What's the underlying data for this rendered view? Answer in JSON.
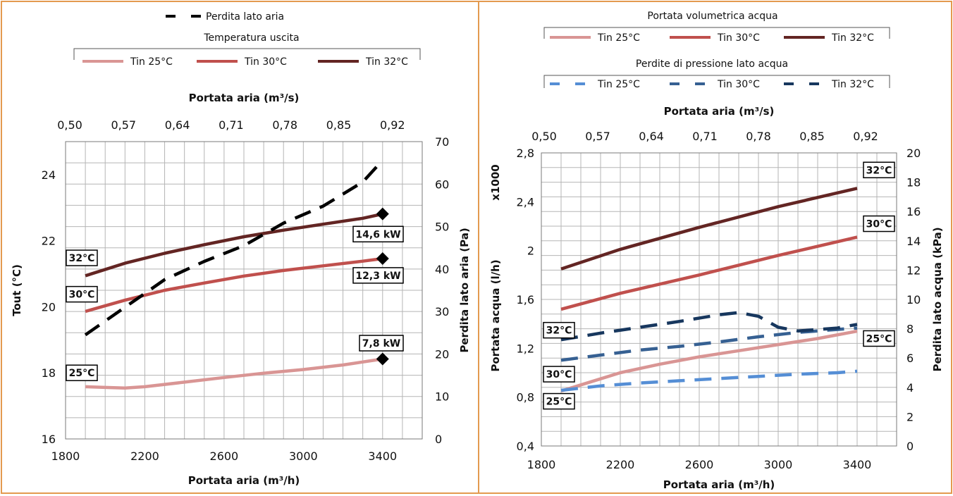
{
  "chart_data": [
    {
      "type": "line",
      "legend": {
        "air_loss_item": "Perdita lato aria",
        "outlet_group_title": "Temperatura uscita",
        "outlet_items": [
          "Tin 25°C",
          "Tin 30°C",
          "Tin 32°C"
        ]
      },
      "x_bottom": {
        "label": "Portata aria (m³/h)",
        "range": [
          1800,
          3600
        ],
        "ticks": [
          "1800",
          "2200",
          "2600",
          "3000",
          "3400"
        ]
      },
      "x_top": {
        "label": "Portata aria (m³/s)",
        "ticks": [
          "0,50",
          "0,57",
          "0,64",
          "0,71",
          "0,78",
          "0,85",
          "0,92"
        ]
      },
      "y_left": {
        "label": "Tout (°C)",
        "range": [
          16,
          25
        ],
        "ticks": [
          "16",
          "18",
          "20",
          "22",
          "24"
        ]
      },
      "y_right": {
        "label": "Perdita lato aria (Pa)",
        "range": [
          0,
          70
        ],
        "ticks": [
          "0",
          "10",
          "20",
          "30",
          "40",
          "50",
          "60",
          "70"
        ]
      },
      "series": [
        {
          "name": "Tin 25°C",
          "axis": "left",
          "color": "#d99594",
          "style": "solid",
          "points": [
            [
              1900,
              17.58
            ],
            [
              2000,
              17.56
            ],
            [
              2100,
              17.54
            ],
            [
              2200,
              17.58
            ],
            [
              2400,
              17.72
            ],
            [
              2600,
              17.86
            ],
            [
              2800,
              17.99
            ],
            [
              3000,
              18.1
            ],
            [
              3200,
              18.24
            ],
            [
              3400,
              18.42
            ]
          ]
        },
        {
          "name": "Tin 30°C",
          "axis": "left",
          "color": "#c0504d",
          "style": "solid",
          "points": [
            [
              1900,
              19.86
            ],
            [
              2100,
              20.2
            ],
            [
              2300,
              20.5
            ],
            [
              2500,
              20.72
            ],
            [
              2700,
              20.93
            ],
            [
              2900,
              21.1
            ],
            [
              3100,
              21.24
            ],
            [
              3300,
              21.38
            ],
            [
              3400,
              21.46
            ]
          ]
        },
        {
          "name": "Tin 32°C",
          "axis": "left",
          "color": "#632523",
          "style": "solid",
          "points": [
            [
              1900,
              20.94
            ],
            [
              2100,
              21.32
            ],
            [
              2300,
              21.62
            ],
            [
              2500,
              21.88
            ],
            [
              2700,
              22.12
            ],
            [
              2900,
              22.32
            ],
            [
              3100,
              22.5
            ],
            [
              3300,
              22.68
            ],
            [
              3400,
              22.81
            ]
          ]
        },
        {
          "name": "Perdita lato aria",
          "axis": "right",
          "color": "#000000",
          "style": "dashed",
          "points": [
            [
              1900,
              24.5
            ],
            [
              2100,
              31
            ],
            [
              2300,
              37.5
            ],
            [
              2500,
              41.8
            ],
            [
              2700,
              45.5
            ],
            [
              2900,
              50.8
            ],
            [
              3100,
              54.8
            ],
            [
              3300,
              60.5
            ],
            [
              3400,
              65.6
            ]
          ]
        }
      ],
      "annotations": [
        {
          "text": "32°C",
          "series": "Tin 32°C"
        },
        {
          "text": "30°C",
          "series": "Tin 30°C"
        },
        {
          "text": "25°C",
          "series": "Tin 25°C"
        },
        {
          "text": "14,6 kW",
          "series": "Tin 32°C"
        },
        {
          "text": "12,3 kW",
          "series": "Tin 30°C"
        },
        {
          "text": "7,8 kW",
          "series": "Tin 25°C"
        }
      ]
    },
    {
      "type": "line",
      "legend": {
        "flow_group_title": "Portata volumetrica acqua",
        "flow_items": [
          "Tin 25°C",
          "Tin 30°C",
          "Tin 32°C"
        ],
        "pressure_group_title": "Perdite di pressione lato acqua",
        "pressure_items": [
          "Tin 25°C",
          "Tin 30°C",
          "Tin 32°C"
        ]
      },
      "x_bottom": {
        "label": "Portata aria (m³/h)",
        "range": [
          1800,
          3600
        ],
        "ticks": [
          "1800",
          "2200",
          "2600",
          "3000",
          "3400"
        ]
      },
      "x_top": {
        "label": "Portata aria (m³/s)",
        "ticks": [
          "0,50",
          "0,57",
          "0,64",
          "0,71",
          "0,78",
          "0,85",
          "0,92"
        ]
      },
      "y_left": {
        "label": "Portata acqua (l/h)",
        "multiplier": "x1000",
        "range": [
          0.4,
          2.8
        ],
        "ticks": [
          "0,4",
          "0,8",
          "1,2",
          "1,6",
          "2",
          "2,4",
          "2,8"
        ]
      },
      "y_right": {
        "label": "Perdita lato acqua (kPa)",
        "range": [
          0,
          20
        ],
        "ticks": [
          "0",
          "2",
          "4",
          "6",
          "8",
          "10",
          "12",
          "14",
          "16",
          "18",
          "20"
        ]
      },
      "series": [
        {
          "name": "Tin 25°C",
          "group": "Portata volumetrica acqua",
          "axis": "left",
          "color": "#d99594",
          "style": "solid",
          "points": [
            [
              1900,
              0.85
            ],
            [
              2000,
              0.9
            ],
            [
              2100,
              0.95
            ],
            [
              2200,
              1.0
            ],
            [
              2400,
              1.07
            ],
            [
              2600,
              1.13
            ],
            [
              2800,
              1.18
            ],
            [
              3000,
              1.23
            ],
            [
              3200,
              1.28
            ],
            [
              3400,
              1.34
            ]
          ]
        },
        {
          "name": "Tin 30°C",
          "group": "Portata volumetrica acqua",
          "axis": "left",
          "color": "#c0504d",
          "style": "solid",
          "points": [
            [
              1900,
              1.52
            ],
            [
              2200,
              1.65
            ],
            [
              2600,
              1.8
            ],
            [
              3000,
              1.96
            ],
            [
              3400,
              2.11
            ]
          ]
        },
        {
          "name": "Tin 32°C",
          "group": "Portata volumetrica acqua",
          "axis": "left",
          "color": "#632523",
          "style": "solid",
          "points": [
            [
              1900,
              1.85
            ],
            [
              2200,
              2.01
            ],
            [
              2600,
              2.19
            ],
            [
              3000,
              2.36
            ],
            [
              3400,
              2.51
            ]
          ]
        },
        {
          "name": "Tin 25°C",
          "group": "Perdite di pressione lato acqua",
          "axis": "right",
          "color": "#558ed5",
          "style": "dashed",
          "points": [
            [
              1900,
              3.8
            ],
            [
              2100,
              4.1
            ],
            [
              2300,
              4.3
            ],
            [
              2500,
              4.45
            ],
            [
              2700,
              4.6
            ],
            [
              2900,
              4.75
            ],
            [
              3100,
              4.9
            ],
            [
              3300,
              5.0
            ],
            [
              3400,
              5.1
            ]
          ]
        },
        {
          "name": "Tin 30°C",
          "group": "Perdite di pressione lato acqua",
          "axis": "right",
          "color": "#366092",
          "style": "dashed",
          "points": [
            [
              1900,
              5.85
            ],
            [
              2100,
              6.2
            ],
            [
              2300,
              6.55
            ],
            [
              2500,
              6.8
            ],
            [
              2700,
              7.1
            ],
            [
              2900,
              7.45
            ],
            [
              3100,
              7.75
            ],
            [
              3300,
              7.95
            ],
            [
              3400,
              8.05
            ]
          ]
        },
        {
          "name": "Tin 32°C",
          "group": "Perdite di pressione lato acqua",
          "axis": "right",
          "color": "#17375e",
          "style": "dashed",
          "points": [
            [
              1900,
              7.25
            ],
            [
              2100,
              7.7
            ],
            [
              2300,
              8.1
            ],
            [
              2500,
              8.5
            ],
            [
              2700,
              8.95
            ],
            [
              2800,
              9.1
            ],
            [
              2900,
              8.85
            ],
            [
              3000,
              8.1
            ],
            [
              3100,
              7.85
            ],
            [
              3300,
              8.05
            ],
            [
              3400,
              8.3
            ]
          ]
        }
      ],
      "annotations": [
        {
          "text": "32°C",
          "series": "Tin 32°C"
        },
        {
          "text": "30°C",
          "series": "Tin 30°C"
        },
        {
          "text": "25°C",
          "series": "Tin 25°C"
        },
        {
          "text": "32°C",
          "series": "Tin 32°C (pressione)"
        },
        {
          "text": "30°C",
          "series": "Tin 30°C (pressione)"
        },
        {
          "text": "25°C",
          "series": "Tin 25°C (pressione)"
        }
      ]
    }
  ]
}
